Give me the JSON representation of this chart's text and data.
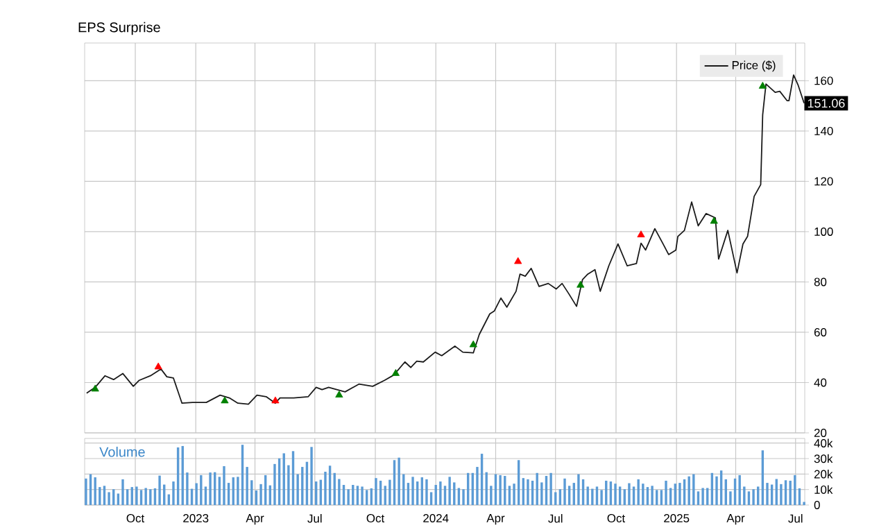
{
  "chart_data": [
    {
      "type": "line",
      "title": "EPS Surprise",
      "legend": "top right",
      "grid": true,
      "tick_labels": "y",
      "xlim": [
        "2022-07-16",
        "2025-07-15"
      ],
      "xticks": [
        {
          "value": "2022-10-01",
          "label": null
        },
        {
          "value": "2023-01-01",
          "label": null
        },
        {
          "value": "2023-04-01",
          "label": null
        },
        {
          "value": "2023-07-01",
          "label": null
        },
        {
          "value": "2023-10-01",
          "label": null
        },
        {
          "value": "2024-01-01",
          "label": null
        },
        {
          "value": "2024-04-01",
          "label": null
        },
        {
          "value": "2024-07-01",
          "label": null
        },
        {
          "value": "2024-10-01",
          "label": null
        },
        {
          "value": "2025-01-01",
          "label": null
        },
        {
          "value": "2025-04-01",
          "label": null
        },
        {
          "value": "2025-07-01",
          "label": null
        }
      ],
      "ylim": [
        20,
        175
      ],
      "yticks": [
        20,
        40,
        60,
        80,
        100,
        120,
        140,
        160
      ],
      "annotations": [
        {
          "text": "151.06",
          "x": "2025-07-14",
          "y": 151.06
        }
      ],
      "series": [
        {
          "name": "Price ($)",
          "type": "line",
          "color": "#1a1a1a",
          "marker": "none",
          "x": [
            "2022-07-19",
            "2022-08-01",
            "2022-08-16",
            "2022-08-29",
            "2022-09-12",
            "2022-09-28",
            "2022-10-07",
            "2022-10-24",
            "2022-11-09",
            "2022-11-18",
            "2022-11-28",
            "2022-12-11",
            "2022-12-27",
            "2023-01-17",
            "2023-02-07",
            "2023-02-21",
            "2023-03-06",
            "2023-03-22",
            "2023-04-04",
            "2023-04-18",
            "2023-05-02",
            "2023-05-09",
            "2023-05-30",
            "2023-06-21",
            "2023-07-03",
            "2023-07-12",
            "2023-07-22",
            "2023-08-16",
            "2023-09-06",
            "2023-09-27",
            "2023-10-15",
            "2023-10-29",
            "2023-11-15",
            "2023-11-24",
            "2023-12-03",
            "2023-12-13",
            "2023-12-31",
            "2024-01-10",
            "2024-01-30",
            "2024-02-11",
            "2024-02-27",
            "2024-03-07",
            "2024-03-23",
            "2024-03-30",
            "2024-04-09",
            "2024-04-18",
            "2024-05-02",
            "2024-05-08",
            "2024-05-16",
            "2024-05-25",
            "2024-06-06",
            "2024-06-20",
            "2024-07-02",
            "2024-07-11",
            "2024-07-21",
            "2024-08-02",
            "2024-08-11",
            "2024-08-19",
            "2024-08-30",
            "2024-09-07",
            "2024-09-20",
            "2024-10-04",
            "2024-10-18",
            "2024-11-01",
            "2024-11-08",
            "2024-11-15",
            "2024-11-29",
            "2024-12-11",
            "2024-12-20",
            "2024-12-31",
            "2025-01-03",
            "2025-01-13",
            "2025-01-24",
            "2025-02-03",
            "2025-02-15",
            "2025-03-01",
            "2025-03-06",
            "2025-03-20",
            "2025-04-03",
            "2025-04-12",
            "2025-04-19",
            "2025-04-29",
            "2025-05-09",
            "2025-05-12",
            "2025-05-17",
            "2025-05-31",
            "2025-06-07",
            "2025-06-18",
            "2025-06-21",
            "2025-06-28",
            "2025-07-05",
            "2025-07-14"
          ],
          "values": [
            35.8,
            38.1,
            42.7,
            41.2,
            43.6,
            38.5,
            40.9,
            42.7,
            45.4,
            42.3,
            41.8,
            31.8,
            32.1,
            32.1,
            35.0,
            33.9,
            31.8,
            31.4,
            35.0,
            34.4,
            31.8,
            33.9,
            33.9,
            34.4,
            38.1,
            37.2,
            38.1,
            36.3,
            39.4,
            38.5,
            40.9,
            43.0,
            48.2,
            46.0,
            48.5,
            48.2,
            52.1,
            50.7,
            54.5,
            52.1,
            51.8,
            59.1,
            67.3,
            68.5,
            73.6,
            70.0,
            76.3,
            83.1,
            82.3,
            85.4,
            78.2,
            79.4,
            77.2,
            79.4,
            75.4,
            70.3,
            80.9,
            83.1,
            84.9,
            76.3,
            86.4,
            95.1,
            86.4,
            87.3,
            95.4,
            92.7,
            101.2,
            95.4,
            90.9,
            92.7,
            98.1,
            100.5,
            111.8,
            102.3,
            107.2,
            105.5,
            89.1,
            100.5,
            83.6,
            95.1,
            98.1,
            114.0,
            118.7,
            146.4,
            158.7,
            155.4,
            155.8,
            152.1,
            152.1,
            162.3,
            158.2,
            151.06
          ]
        },
        {
          "type": "scatter",
          "color": "#008000",
          "marker": "triangle",
          "x": [
            "2022-08-01",
            "2023-02-14",
            "2023-08-07",
            "2023-11-01",
            "2024-02-27",
            "2024-08-08",
            "2025-02-27",
            "2025-05-12"
          ],
          "values": [
            37.4,
            32.7,
            35.0,
            43.6,
            55.0,
            78.7,
            104.1,
            157.8
          ]
        },
        {
          "type": "scatter",
          "color": "#ff0000",
          "marker": "triangle",
          "x": [
            "2022-11-05",
            "2023-05-02",
            "2024-05-05",
            "2024-11-08"
          ],
          "values": [
            46.2,
            32.7,
            88.1,
            98.7
          ]
        }
      ]
    },
    {
      "type": "bar",
      "title": "Volume",
      "grid": true,
      "xlim": [
        "2022-07-16",
        "2025-07-15"
      ],
      "xticks": [
        {
          "value": "2022-10-01",
          "label": "Oct"
        },
        {
          "value": "2023-01-01",
          "label": "2023"
        },
        {
          "value": "2023-04-01",
          "label": "Apr"
        },
        {
          "value": "2023-07-01",
          "label": "Jul"
        },
        {
          "value": "2023-10-01",
          "label": "Oct"
        },
        {
          "value": "2024-01-01",
          "label": "2024"
        },
        {
          "value": "2024-04-01",
          "label": "Apr"
        },
        {
          "value": "2024-07-01",
          "label": "Jul"
        },
        {
          "value": "2024-10-01",
          "label": "Oct"
        },
        {
          "value": "2025-01-01",
          "label": "2025"
        },
        {
          "value": "2025-04-01",
          "label": "Apr"
        },
        {
          "value": "2025-07-01",
          "label": "Jul"
        }
      ],
      "ylim": [
        0,
        43000
      ],
      "yticks": [
        0,
        {
          "value": 10000,
          "label": "10k"
        },
        {
          "value": 20000,
          "label": "20k"
        },
        {
          "value": 30000,
          "label": "30k"
        },
        {
          "value": 40000,
          "label": "40k"
        }
      ],
      "series": [
        {
          "color": "#5b9bd5",
          "x": [
            "2022-07-18",
            "2022-07-25",
            "2022-08-01",
            "2022-08-08",
            "2022-08-15",
            "2022-08-22",
            "2022-08-29",
            "2022-09-05",
            "2022-09-12",
            "2022-09-19",
            "2022-09-26",
            "2022-10-03",
            "2022-10-10",
            "2022-10-17",
            "2022-10-24",
            "2022-10-31",
            "2022-11-07",
            "2022-11-14",
            "2022-11-21",
            "2022-11-28",
            "2022-12-05",
            "2022-12-12",
            "2022-12-19",
            "2022-12-26",
            "2023-01-02",
            "2023-01-09",
            "2023-01-16",
            "2023-01-23",
            "2023-01-30",
            "2023-02-06",
            "2023-02-13",
            "2023-02-20",
            "2023-02-27",
            "2023-03-06",
            "2023-03-13",
            "2023-03-20",
            "2023-03-27",
            "2023-04-03",
            "2023-04-10",
            "2023-04-17",
            "2023-04-24",
            "2023-05-01",
            "2023-05-08",
            "2023-05-15",
            "2023-05-22",
            "2023-05-29",
            "2023-06-05",
            "2023-06-12",
            "2023-06-19",
            "2023-06-26",
            "2023-07-03",
            "2023-07-10",
            "2023-07-17",
            "2023-07-24",
            "2023-07-31",
            "2023-08-07",
            "2023-08-14",
            "2023-08-21",
            "2023-08-28",
            "2023-09-04",
            "2023-09-11",
            "2023-09-18",
            "2023-09-25",
            "2023-10-02",
            "2023-10-09",
            "2023-10-16",
            "2023-10-23",
            "2023-10-30",
            "2023-11-06",
            "2023-11-13",
            "2023-11-20",
            "2023-11-27",
            "2023-12-04",
            "2023-12-11",
            "2023-12-18",
            "2023-12-25",
            "2024-01-01",
            "2024-01-08",
            "2024-01-15",
            "2024-01-22",
            "2024-01-29",
            "2024-02-05",
            "2024-02-12",
            "2024-02-19",
            "2024-02-26",
            "2024-03-04",
            "2024-03-11",
            "2024-03-18",
            "2024-03-25",
            "2024-04-01",
            "2024-04-08",
            "2024-04-15",
            "2024-04-22",
            "2024-04-29",
            "2024-05-06",
            "2024-05-13",
            "2024-05-20",
            "2024-05-27",
            "2024-06-03",
            "2024-06-10",
            "2024-06-17",
            "2024-06-24",
            "2024-07-01",
            "2024-07-08",
            "2024-07-15",
            "2024-07-22",
            "2024-07-29",
            "2024-08-05",
            "2024-08-12",
            "2024-08-19",
            "2024-08-26",
            "2024-09-02",
            "2024-09-09",
            "2024-09-16",
            "2024-09-23",
            "2024-09-30",
            "2024-10-07",
            "2024-10-14",
            "2024-10-21",
            "2024-10-28",
            "2024-11-04",
            "2024-11-11",
            "2024-11-18",
            "2024-11-25",
            "2024-12-02",
            "2024-12-09",
            "2024-12-16",
            "2024-12-23",
            "2024-12-30",
            "2025-01-06",
            "2025-01-13",
            "2025-01-20",
            "2025-01-27",
            "2025-02-03",
            "2025-02-10",
            "2025-02-17",
            "2025-02-24",
            "2025-03-03",
            "2025-03-10",
            "2025-03-17",
            "2025-03-24",
            "2025-03-31",
            "2025-04-07",
            "2025-04-14",
            "2025-04-21",
            "2025-04-28",
            "2025-05-05",
            "2025-05-12",
            "2025-05-19",
            "2025-05-26",
            "2025-06-02",
            "2025-06-09",
            "2025-06-16",
            "2025-06-23",
            "2025-06-30",
            "2025-07-07",
            "2025-07-14"
          ],
          "values": [
            17100,
            19900,
            17900,
            11600,
            12400,
            8300,
            10200,
            7400,
            16600,
            10200,
            11600,
            11900,
            9700,
            11000,
            10200,
            10800,
            19000,
            13200,
            6900,
            15200,
            37200,
            38100,
            21000,
            10500,
            14100,
            19300,
            11900,
            21000,
            21200,
            18200,
            25100,
            14300,
            17900,
            18200,
            38900,
            24600,
            16000,
            9400,
            13500,
            19300,
            12700,
            26500,
            30100,
            33400,
            25700,
            34800,
            19900,
            24600,
            27900,
            37500,
            15200,
            16300,
            21500,
            25400,
            20700,
            16800,
            13000,
            10200,
            13000,
            12400,
            11900,
            9700,
            10800,
            17400,
            15700,
            12400,
            16300,
            29000,
            30600,
            19900,
            14300,
            18200,
            15200,
            17900,
            16600,
            8300,
            13000,
            15200,
            12400,
            18200,
            14600,
            11000,
            10200,
            20700,
            20700,
            24600,
            33100,
            21200,
            12400,
            19900,
            19300,
            18800,
            12400,
            13800,
            29000,
            17400,
            16600,
            15700,
            20700,
            14600,
            18800,
            20700,
            8300,
            10200,
            17100,
            12400,
            14300,
            19900,
            16600,
            11900,
            10500,
            11900,
            9700,
            15700,
            15200,
            13800,
            11900,
            10200,
            14100,
            11900,
            16600,
            13800,
            11600,
            12400,
            9700,
            9700,
            15700,
            11000,
            13800,
            14300,
            16600,
            18500,
            19900,
            8800,
            11000,
            11000,
            20700,
            18500,
            22300,
            16600,
            8800,
            17100,
            19300,
            11900,
            8800,
            10200,
            11900,
            35300,
            14300,
            13200,
            16800,
            13500,
            16000,
            15700,
            19300,
            10800,
            2000
          ]
        }
      ]
    }
  ]
}
